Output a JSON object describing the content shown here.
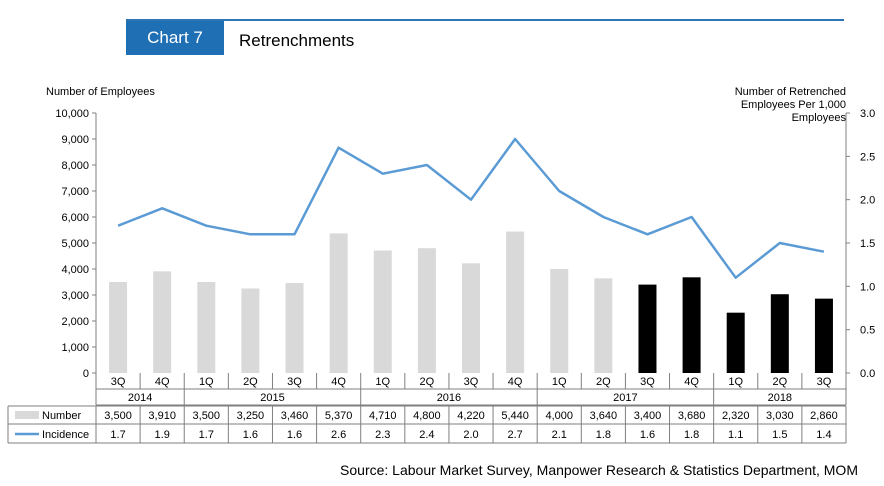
{
  "header": {
    "badge": "Chart 7",
    "title": "Retrenchments"
  },
  "source": "Source: Labour Market Survey, Manpower Research & Statistics Department, MOM",
  "colors": {
    "accent": "#1f6fb4",
    "bar_light": "#d9d9d9",
    "bar_dark": "#000000",
    "line": "#5b9bd5"
  },
  "chart_data": {
    "type": "bar",
    "title": "Retrenchments",
    "ylabel": "Number of Employees",
    "y2label": [
      "Number of Retrenched",
      "Employees Per 1,000",
      "Employees"
    ],
    "ylim": [
      0,
      10000
    ],
    "y2lim": [
      0,
      3.0
    ],
    "yticks": [
      "0",
      "1,000",
      "2,000",
      "3,000",
      "4,000",
      "5,000",
      "6,000",
      "7,000",
      "8,000",
      "9,000",
      "10,000"
    ],
    "y2ticks": [
      "0.0",
      "0.5",
      "1.0",
      "1.5",
      "2.0",
      "2.5",
      "3.0"
    ],
    "categories": [
      "3Q",
      "4Q",
      "1Q",
      "2Q",
      "3Q",
      "4Q",
      "1Q",
      "2Q",
      "3Q",
      "4Q",
      "1Q",
      "2Q",
      "3Q",
      "4Q",
      "1Q",
      "2Q",
      "3Q"
    ],
    "years": [
      {
        "label": "2014",
        "span": 2
      },
      {
        "label": "2015",
        "span": 4
      },
      {
        "label": "2016",
        "span": 4
      },
      {
        "label": "2017",
        "span": 4
      },
      {
        "label": "2018",
        "span": 3
      }
    ],
    "series": [
      {
        "name": "Number",
        "type": "bar",
        "values": [
          3500,
          3910,
          3500,
          3250,
          3460,
          5370,
          4710,
          4800,
          4220,
          5440,
          4000,
          3640,
          3400,
          3680,
          2320,
          3030,
          2860
        ],
        "labels": [
          "3,500",
          "3,910",
          "3,500",
          "3,250",
          "3,460",
          "5,370",
          "4,710",
          "4,800",
          "4,220",
          "5,440",
          "4,000",
          "3,640",
          "3,400",
          "3,680",
          "2,320",
          "3,030",
          "2,860"
        ],
        "dark_from_index": 12
      },
      {
        "name": "Incidence",
        "type": "line",
        "axis": "right",
        "values": [
          1.7,
          1.9,
          1.7,
          1.6,
          1.6,
          2.6,
          2.3,
          2.4,
          2.0,
          2.7,
          2.1,
          1.8,
          1.6,
          1.8,
          1.1,
          1.5,
          1.4
        ],
        "labels": [
          "1.7",
          "1.9",
          "1.7",
          "1.6",
          "1.6",
          "2.6",
          "2.3",
          "2.4",
          "2.0",
          "2.7",
          "2.1",
          "1.8",
          "1.6",
          "1.8",
          "1.1",
          "1.5",
          "1.4"
        ]
      }
    ],
    "grid": false
  }
}
